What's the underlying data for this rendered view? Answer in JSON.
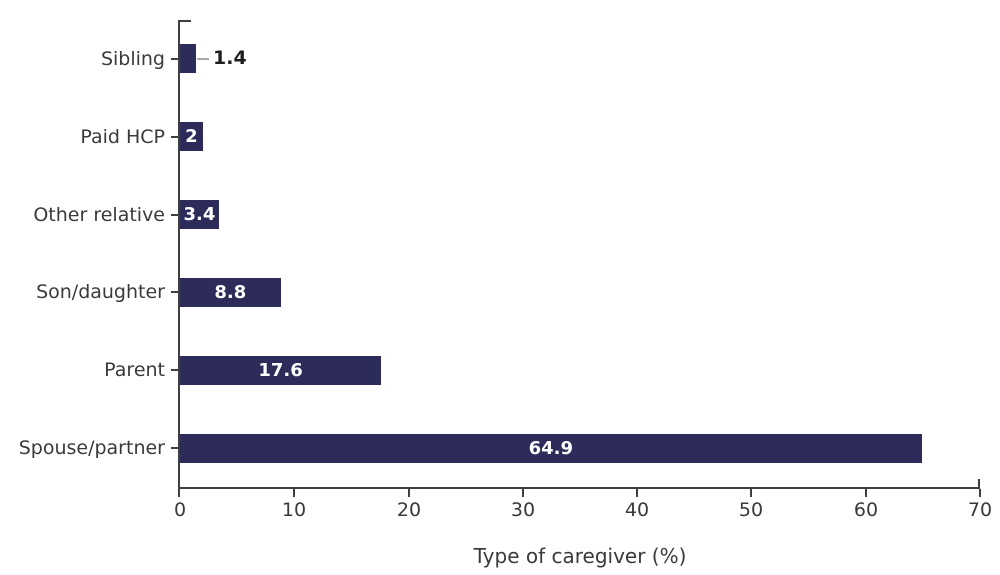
{
  "chart_data": {
    "type": "bar",
    "orientation": "horizontal",
    "title": "",
    "xlabel": "Type of caregiver (%)",
    "ylabel": "",
    "categories": [
      "Sibling",
      "Paid HCP",
      "Other relative",
      "Son/daughter",
      "Parent",
      "Spouse/partner"
    ],
    "values": [
      1.4,
      2,
      3.4,
      8.8,
      17.6,
      64.9
    ],
    "value_labels": [
      "1.4",
      "2",
      "3.4",
      "8.8",
      "17.6",
      "64.9"
    ],
    "value_label_placement": [
      "outside-leader",
      "inside",
      "inside",
      "inside",
      "inside",
      "inside"
    ],
    "xlim": [
      0,
      70
    ],
    "x_ticks": [
      0,
      10,
      20,
      30,
      40,
      50,
      60,
      70
    ],
    "grid": false,
    "legend": "none",
    "colors": {
      "bar": "#2d2b59",
      "axis": "#3f3f3f",
      "category_label": "#3a3a3a",
      "tick_label": "#3a3a3a",
      "value_inside": "#ffffff",
      "value_outside": "#1f1f1f",
      "leader_line": "#a8a8a8",
      "background": "#ffffff"
    }
  }
}
